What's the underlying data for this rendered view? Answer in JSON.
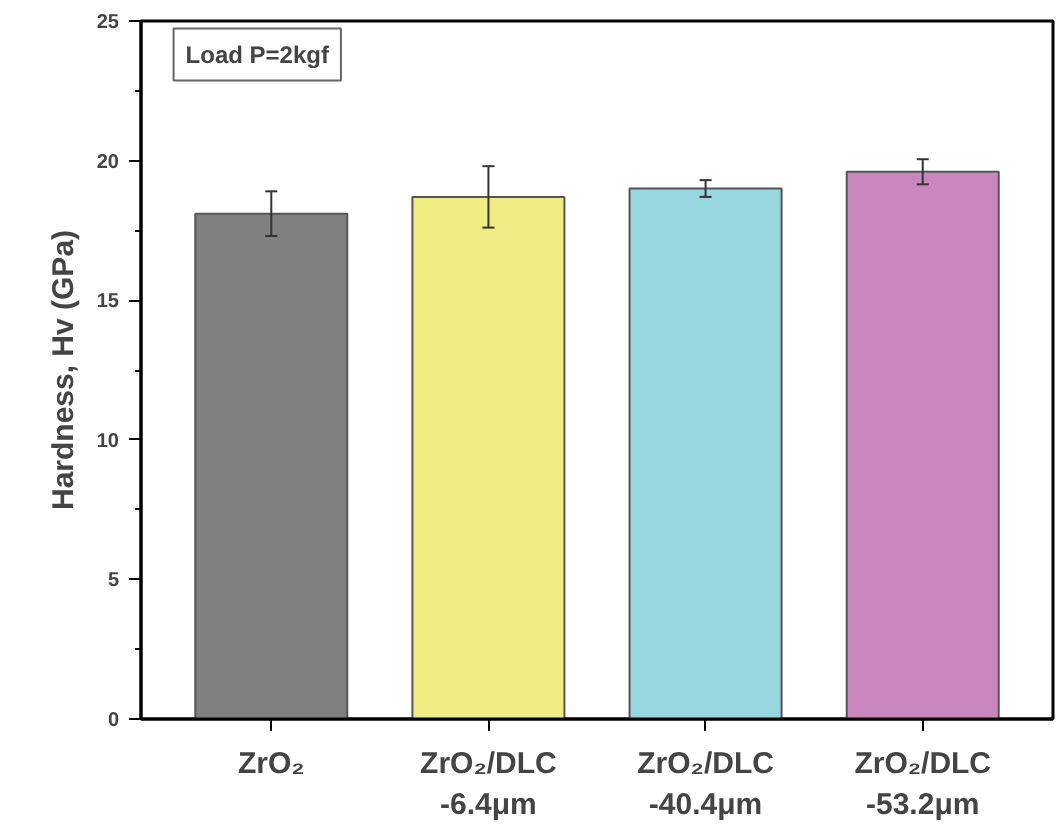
{
  "chart_data": {
    "type": "bar",
    "ylabel": "Hardness, Hv (GPa)",
    "categories": [
      "ZrO₂",
      "ZrO₂/DLC\n-6.4μm",
      "ZrO₂/DLC\n-40.4μm",
      "ZrO₂/DLC\n-53.2μm"
    ],
    "values": [
      18.1,
      18.7,
      19.0,
      19.6
    ],
    "errors": [
      0.8,
      1.1,
      0.3,
      0.45
    ],
    "colors": [
      "#808080",
      "#f0ec84",
      "#98d6e0",
      "#c987bd"
    ],
    "ylim": [
      0,
      25
    ],
    "yticks": [
      0,
      {
        "value": 2.5,
        "label": null
      },
      5,
      {
        "value": 7.5,
        "label": null
      },
      10,
      {
        "value": 12.5,
        "label": null
      },
      15,
      {
        "value": 17.5,
        "label": null
      },
      20,
      {
        "value": 22.5,
        "label": null
      },
      25
    ],
    "annotations": [
      "Load P=2kgf"
    ],
    "grid": false
  }
}
